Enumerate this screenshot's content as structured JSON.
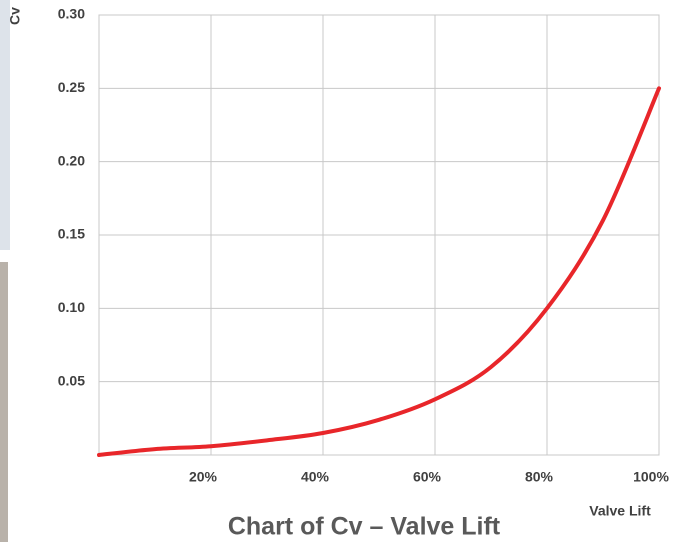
{
  "chart_data": {
    "type": "line",
    "title": "Chart of Cv – Valve Lift",
    "x_label": "Valve Lift",
    "y_label": "Cv",
    "x": [
      0,
      10,
      20,
      30,
      40,
      50,
      60,
      70,
      80,
      90,
      100
    ],
    "series": [
      {
        "name": "Cv",
        "color": "#e8262a",
        "values": [
          0,
          0.004,
          0.006,
          0.01,
          0.015,
          0.024,
          0.038,
          0.06,
          0.1,
          0.16,
          0.25
        ]
      }
    ],
    "xlim": [
      0,
      100
    ],
    "xticks": [
      {
        "value": 20,
        "label": "20%"
      },
      {
        "value": 40,
        "label": "40%"
      },
      {
        "value": 60,
        "label": "60%"
      },
      {
        "value": 80,
        "label": "80%"
      },
      {
        "value": 100,
        "label": "100%"
      }
    ],
    "ylim": [
      0,
      0.3
    ],
    "yticks": [
      {
        "value": 0.05,
        "label": "0.05"
      },
      {
        "value": 0.1,
        "label": "0.10"
      },
      0.15,
      {
        "value": 0.2,
        "label": "0.20"
      },
      0.25,
      {
        "value": 0.3,
        "label": "0.30"
      }
    ],
    "grid": true
  }
}
